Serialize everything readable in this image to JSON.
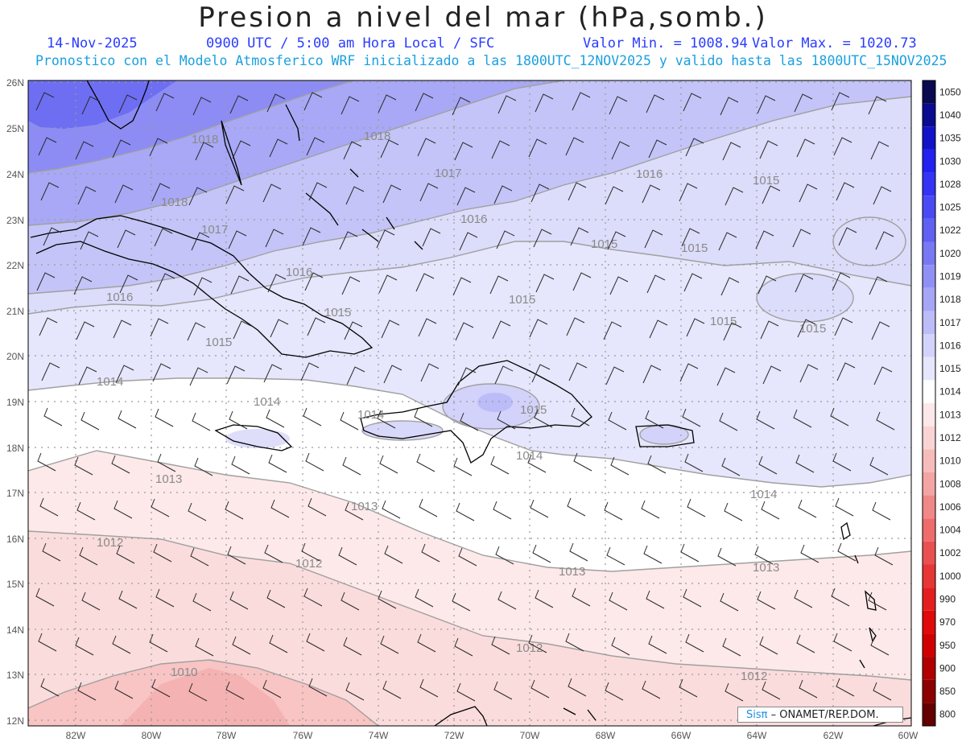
{
  "header": {
    "title": "Presion a nivel del mar (hPa,somb.)",
    "date": "14-Nov-2025",
    "time": "0900 UTC / 5:00 am Hora Local / SFC",
    "min_label": "Valor Min. = 1008.94",
    "max_label": "Valor Max. = 1020.73",
    "run_info": "Pronostico con el Modelo Atmosferico WRF inicializado a las 1800UTC_12NOV2025 y valido hasta las  1800UTC_15NOV2025"
  },
  "map": {
    "lat_labels": [
      "26N",
      "25N",
      "24N",
      "23N",
      "22N",
      "21N",
      "20N",
      "19N",
      "18N",
      "17N",
      "16N",
      "15N",
      "14N",
      "13N",
      "12N"
    ],
    "lon_labels": [
      "82W",
      "80W",
      "78W",
      "76W",
      "74W",
      "72W",
      "70W",
      "68W",
      "66W",
      "64W",
      "62W",
      "60W"
    ],
    "isobar_labels": [
      {
        "text": "1018"
      },
      {
        "text": "1018"
      },
      {
        "text": "1018"
      },
      {
        "text": "1017"
      },
      {
        "text": "1017"
      },
      {
        "text": "1016"
      },
      {
        "text": "1016"
      },
      {
        "text": "1016"
      },
      {
        "text": "1016"
      },
      {
        "text": "1015"
      },
      {
        "text": "1015"
      },
      {
        "text": "1015"
      },
      {
        "text": "1015"
      },
      {
        "text": "1015"
      },
      {
        "text": "1015"
      },
      {
        "text": "1015"
      },
      {
        "text": "1015"
      },
      {
        "text": "1015"
      },
      {
        "text": "1014"
      },
      {
        "text": "1014"
      },
      {
        "text": "1014"
      },
      {
        "text": "1014"
      },
      {
        "text": "1014"
      },
      {
        "text": "1013"
      },
      {
        "text": "1013"
      },
      {
        "text": "1013"
      },
      {
        "text": "1013"
      },
      {
        "text": "1012"
      },
      {
        "text": "1012"
      },
      {
        "text": "1012"
      },
      {
        "text": "1012"
      },
      {
        "text": "1010"
      }
    ]
  },
  "colorbar": {
    "labels": [
      "1050",
      "1040",
      "1035",
      "1030",
      "1028",
      "1025",
      "1022",
      "1020",
      "1019",
      "1018",
      "1017",
      "1016",
      "1015",
      "1014",
      "1013",
      "1012",
      "1010",
      "1008",
      "1006",
      "1004",
      "1002",
      "1000",
      "990",
      "970",
      "950",
      "900",
      "850",
      "800"
    ],
    "colors": [
      "#0a0a50",
      "#0b0b8f",
      "#1212c8",
      "#2222f0",
      "#3434f4",
      "#4a4af4",
      "#6060f2",
      "#7878f4",
      "#9090f4",
      "#a6a6f6",
      "#bcbcf8",
      "#d2d2fa",
      "#e6e6fc",
      "#ffffff",
      "#fce8e8",
      "#fad4d4",
      "#f6bcbc",
      "#f4a4a4",
      "#f08888",
      "#ee6c6c",
      "#ea5050",
      "#e63636",
      "#e41e1e",
      "#e00a0a",
      "#d00000",
      "#b00000",
      "#8c0000",
      "#640000"
    ]
  },
  "credit": {
    "brand": "Sisπ",
    "rest": " – ONAMET/REP.DOM."
  }
}
